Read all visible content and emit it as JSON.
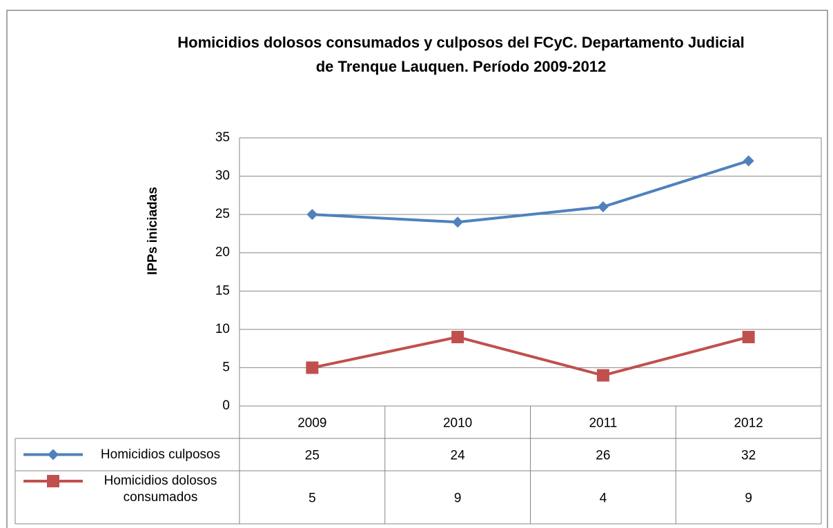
{
  "chart_data": {
    "type": "line",
    "title": [
      "Homicidios dolosos consumados  y culposos del FCyC. Departamento Judicial",
      "de Trenque Lauquen. Período  2009-2012"
    ],
    "y_label": "IPPs iniciadas",
    "categories": [
      "2009",
      "2010",
      "2011",
      "2012"
    ],
    "series": [
      {
        "name": "Homicidios culposos",
        "color": "#4f81bd",
        "marker": "diamond",
        "values": [
          25,
          24,
          26,
          32
        ]
      },
      {
        "name": "Homicidios dolosos consumados",
        "color": "#c0504d",
        "marker": "square",
        "values": [
          5,
          9,
          4,
          9
        ]
      }
    ],
    "ylim": [
      0,
      35
    ],
    "yticks": [
      0,
      5,
      10,
      15,
      20,
      25,
      30,
      35
    ],
    "grid": true,
    "data_table": true
  }
}
